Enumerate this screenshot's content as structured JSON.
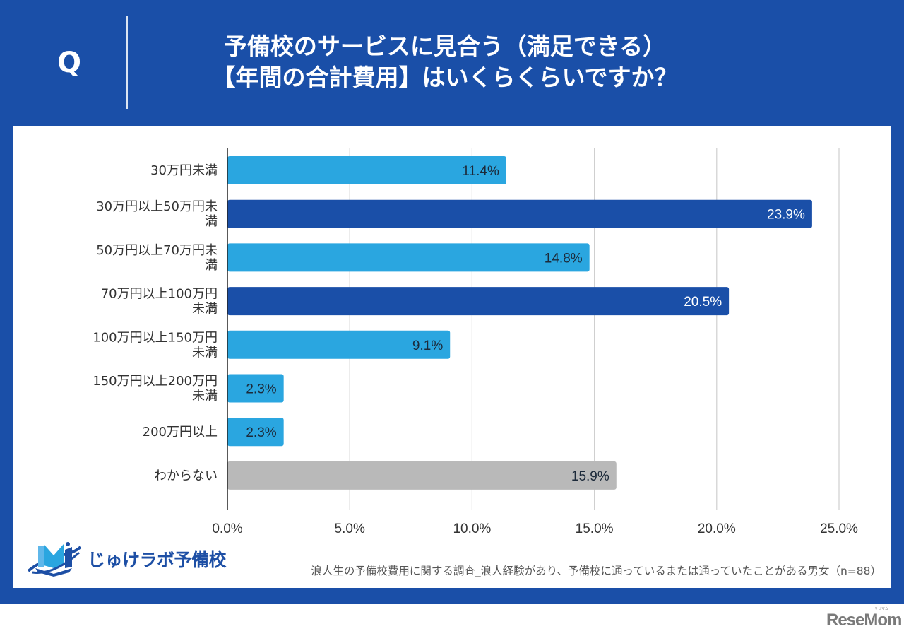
{
  "header": {
    "q_label": "Q",
    "title_line1": "予備校のサービスに見合う（満足できる）",
    "title_line2": "【年間の合計費用】はいくらくらいですか？"
  },
  "colors": {
    "frame_blue": "#1a4fa8",
    "bar_light_blue": "#2aa6e0",
    "bar_dark_blue": "#1a4fa8",
    "bar_gray": "#b9b9b9"
  },
  "chart_data": {
    "type": "bar",
    "orientation": "horizontal",
    "title": "予備校のサービスに見合う（満足できる）【年間の合計費用】はいくらくらいですか？",
    "categories": [
      [
        "30万円未満"
      ],
      [
        "30万円以上50万円未",
        "満"
      ],
      [
        "50万円以上70万円未",
        "満"
      ],
      [
        "70万円以上100万円",
        "未満"
      ],
      [
        "100万円以上150万円",
        "未満"
      ],
      [
        "150万円以上200万円",
        "未満"
      ],
      [
        "200万円以上"
      ],
      [
        "わからない"
      ]
    ],
    "values": [
      11.4,
      23.9,
      14.8,
      20.5,
      9.1,
      2.3,
      2.3,
      15.9
    ],
    "value_labels": [
      "11.4%",
      "23.9%",
      "14.8%",
      "20.5%",
      "9.1%",
      "2.3%",
      "2.3%",
      "15.9%"
    ],
    "bar_colors": [
      "light",
      "dark",
      "light",
      "dark",
      "light",
      "light",
      "light",
      "gray"
    ],
    "xlabel": "",
    "ylabel": "",
    "xlim": [
      0,
      25
    ],
    "xticks": [
      0,
      5,
      10,
      15,
      20,
      25
    ],
    "xtick_labels": [
      "0.0%",
      "5.0%",
      "10.0%",
      "15.0%",
      "20.0%",
      "25.0%"
    ],
    "grid": true,
    "legend": "none"
  },
  "footer": {
    "logo_text": "じゅけラボ予備校",
    "source_note": "浪人生の予備校費用に関する調査_浪人経験があり、予備校に通っているまたは通っていたことがある男女（n=88）",
    "watermark": "ReseMom",
    "watermark_sub": "リセマム"
  }
}
